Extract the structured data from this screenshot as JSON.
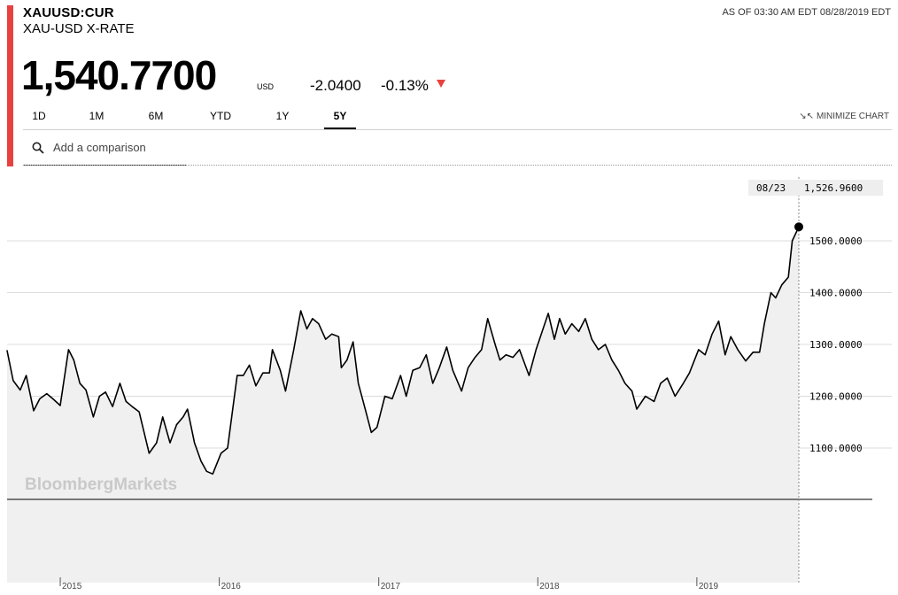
{
  "header": {
    "ticker": "XAUUSD:CUR",
    "name": "XAU-USD X-RATE",
    "as_of": "AS OF 03:30 AM EDT 08/28/2019 EDT"
  },
  "quote": {
    "price": "1,540.7700",
    "currency": "USD",
    "change": "-2.0400",
    "change_pct": "-0.13%",
    "direction": "down",
    "down_color": "#e8423f"
  },
  "tabs": [
    {
      "label": "1D",
      "active": false
    },
    {
      "label": "1M",
      "active": false
    },
    {
      "label": "6M",
      "active": false
    },
    {
      "label": "YTD",
      "active": false
    },
    {
      "label": "1Y",
      "active": false
    },
    {
      "label": "5Y",
      "active": true
    }
  ],
  "minimize_label": "MINIMIZE CHART",
  "search": {
    "placeholder": "Add a comparison"
  },
  "watermark": "BloombergMarkets",
  "chart_data": {
    "type": "area",
    "title": "",
    "xlabel": "",
    "ylabel": "",
    "x_ticks": [
      "2015",
      "2016",
      "2017",
      "2018",
      "2019"
    ],
    "y_ticks": [
      "1100.0000",
      "1200.0000",
      "1300.0000",
      "1400.0000",
      "1500.0000"
    ],
    "ylim": [
      980,
      1550
    ],
    "grid": true,
    "tooltip": {
      "date": "08/23",
      "value": "1,526.9600"
    },
    "series": [
      {
        "values": [
          [
            "2014-09-01",
            1288
          ],
          [
            "2014-09-15",
            1230
          ],
          [
            "2014-10-01",
            1212
          ],
          [
            "2014-10-15",
            1240
          ],
          [
            "2014-11-01",
            1172
          ],
          [
            "2014-11-15",
            1195
          ],
          [
            "2014-12-01",
            1205
          ],
          [
            "2014-12-15",
            1195
          ],
          [
            "2015-01-01",
            1182
          ],
          [
            "2015-01-20",
            1290
          ],
          [
            "2015-02-01",
            1270
          ],
          [
            "2015-02-15",
            1225
          ],
          [
            "2015-03-01",
            1212
          ],
          [
            "2015-03-18",
            1160
          ],
          [
            "2015-04-01",
            1200
          ],
          [
            "2015-04-15",
            1208
          ],
          [
            "2015-05-01",
            1180
          ],
          [
            "2015-05-18",
            1225
          ],
          [
            "2015-06-01",
            1190
          ],
          [
            "2015-06-15",
            1180
          ],
          [
            "2015-07-01",
            1170
          ],
          [
            "2015-07-24",
            1090
          ],
          [
            "2015-08-10",
            1110
          ],
          [
            "2015-08-24",
            1160
          ],
          [
            "2015-09-10",
            1110
          ],
          [
            "2015-09-25",
            1145
          ],
          [
            "2015-10-10",
            1160
          ],
          [
            "2015-10-20",
            1175
          ],
          [
            "2015-11-05",
            1110
          ],
          [
            "2015-11-20",
            1075
          ],
          [
            "2015-12-03",
            1055
          ],
          [
            "2015-12-17",
            1050
          ],
          [
            "2016-01-05",
            1090
          ],
          [
            "2016-01-20",
            1100
          ],
          [
            "2016-02-11",
            1240
          ],
          [
            "2016-02-25",
            1240
          ],
          [
            "2016-03-10",
            1260
          ],
          [
            "2016-03-25",
            1220
          ],
          [
            "2016-04-10",
            1245
          ],
          [
            "2016-04-25",
            1245
          ],
          [
            "2016-05-02",
            1290
          ],
          [
            "2016-05-20",
            1250
          ],
          [
            "2016-06-01",
            1210
          ],
          [
            "2016-06-20",
            1290
          ],
          [
            "2016-07-06",
            1365
          ],
          [
            "2016-07-20",
            1330
          ],
          [
            "2016-08-02",
            1350
          ],
          [
            "2016-08-16",
            1340
          ],
          [
            "2016-09-01",
            1310
          ],
          [
            "2016-09-15",
            1320
          ],
          [
            "2016-10-01",
            1315
          ],
          [
            "2016-10-07",
            1255
          ],
          [
            "2016-10-20",
            1270
          ],
          [
            "2016-11-03",
            1305
          ],
          [
            "2016-11-15",
            1225
          ],
          [
            "2016-12-01",
            1175
          ],
          [
            "2016-12-15",
            1130
          ],
          [
            "2016-12-28",
            1140
          ],
          [
            "2017-01-15",
            1200
          ],
          [
            "2017-02-01",
            1195
          ],
          [
            "2017-02-20",
            1240
          ],
          [
            "2017-03-05",
            1200
          ],
          [
            "2017-03-20",
            1250
          ],
          [
            "2017-04-05",
            1255
          ],
          [
            "2017-04-20",
            1280
          ],
          [
            "2017-05-05",
            1225
          ],
          [
            "2017-05-20",
            1255
          ],
          [
            "2017-06-06",
            1295
          ],
          [
            "2017-06-20",
            1250
          ],
          [
            "2017-07-10",
            1210
          ],
          [
            "2017-07-25",
            1255
          ],
          [
            "2017-08-10",
            1275
          ],
          [
            "2017-08-25",
            1290
          ],
          [
            "2017-09-08",
            1350
          ],
          [
            "2017-09-25",
            1300
          ],
          [
            "2017-10-06",
            1270
          ],
          [
            "2017-10-20",
            1280
          ],
          [
            "2017-11-05",
            1275
          ],
          [
            "2017-11-20",
            1290
          ],
          [
            "2017-12-12",
            1240
          ],
          [
            "2017-12-28",
            1290
          ],
          [
            "2018-01-25",
            1360
          ],
          [
            "2018-02-08",
            1310
          ],
          [
            "2018-02-20",
            1350
          ],
          [
            "2018-03-05",
            1320
          ],
          [
            "2018-03-20",
            1340
          ],
          [
            "2018-04-05",
            1325
          ],
          [
            "2018-04-20",
            1350
          ],
          [
            "2018-05-05",
            1310
          ],
          [
            "2018-05-20",
            1290
          ],
          [
            "2018-06-05",
            1300
          ],
          [
            "2018-06-20",
            1270
          ],
          [
            "2018-07-05",
            1250
          ],
          [
            "2018-07-20",
            1225
          ],
          [
            "2018-08-05",
            1210
          ],
          [
            "2018-08-16",
            1175
          ],
          [
            "2018-09-05",
            1200
          ],
          [
            "2018-09-25",
            1190
          ],
          [
            "2018-10-10",
            1225
          ],
          [
            "2018-10-25",
            1235
          ],
          [
            "2018-11-12",
            1200
          ],
          [
            "2018-12-01",
            1225
          ],
          [
            "2018-12-15",
            1245
          ],
          [
            "2019-01-05",
            1290
          ],
          [
            "2019-01-20",
            1280
          ],
          [
            "2019-02-05",
            1320
          ],
          [
            "2019-02-20",
            1345
          ],
          [
            "2019-03-07",
            1280
          ],
          [
            "2019-03-20",
            1315
          ],
          [
            "2019-04-05",
            1290
          ],
          [
            "2019-04-23",
            1268
          ],
          [
            "2019-05-10",
            1285
          ],
          [
            "2019-05-25",
            1285
          ],
          [
            "2019-06-05",
            1340
          ],
          [
            "2019-06-20",
            1400
          ],
          [
            "2019-07-01",
            1390
          ],
          [
            "2019-07-15",
            1415
          ],
          [
            "2019-07-30",
            1430
          ],
          [
            "2019-08-08",
            1500
          ],
          [
            "2019-08-23",
            1526.96
          ]
        ]
      }
    ]
  }
}
